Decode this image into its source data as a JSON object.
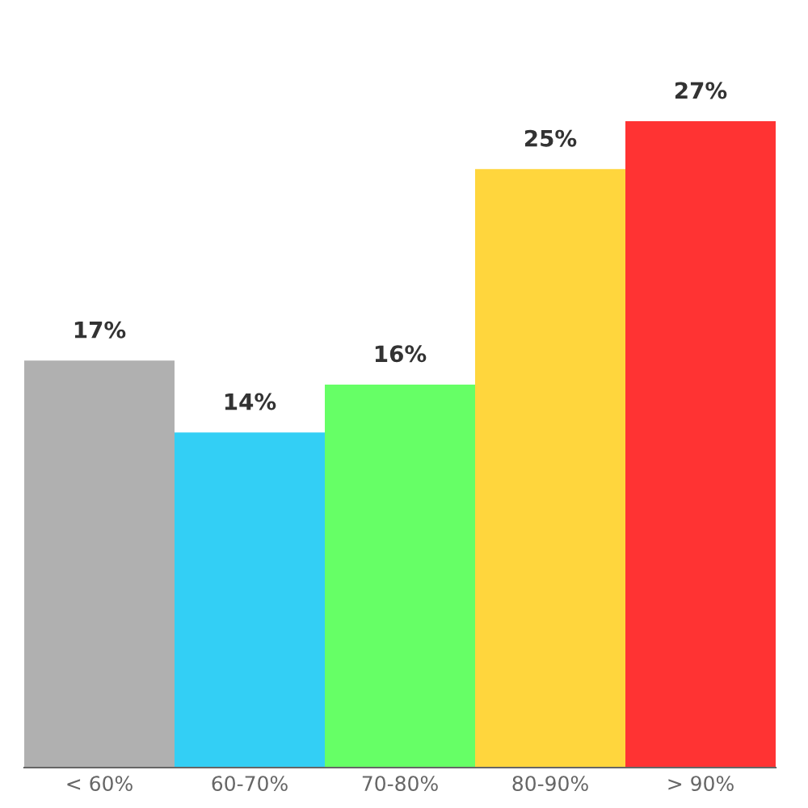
{
  "chart_data": {
    "type": "bar",
    "categories": [
      "< 60%",
      "60-70%",
      "70-80%",
      "80-90%",
      "> 90%"
    ],
    "values": [
      17,
      14,
      16,
      25,
      27
    ],
    "value_labels": [
      "17%",
      "14%",
      "16%",
      "25%",
      "27%"
    ],
    "colors": [
      "#b0b0b0",
      "#33cff5",
      "#66ff66",
      "#ffd63d",
      "#ff3333"
    ],
    "data_labels": false
  }
}
